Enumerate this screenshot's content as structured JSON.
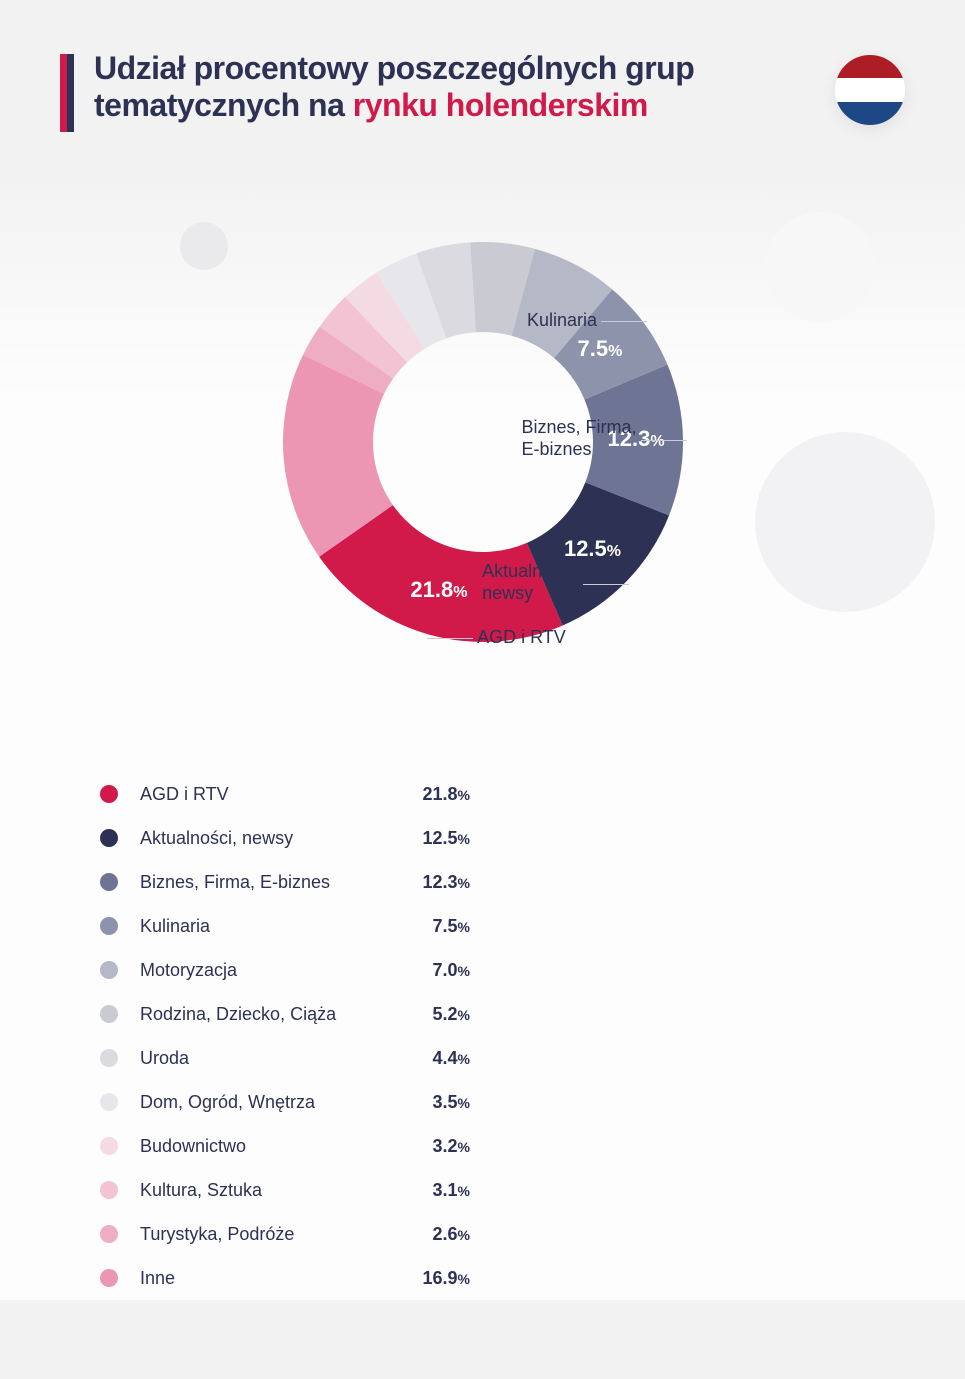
{
  "header": {
    "title_prefix": "Udział procentowy poszczególnych grup tematycznych na ",
    "title_highlight": "rynku holenderskim",
    "flag_colors": [
      "#ad1d25",
      "#ffffff",
      "#1e4785"
    ]
  },
  "chart": {
    "type": "donut",
    "inner_radius_ratio": 0.55,
    "background_color": "#fdfdfd",
    "start_angle_deg": 145,
    "direction": "counterclockwise",
    "slices": [
      {
        "label": "AGD i RTV",
        "value": 21.8,
        "color": "#d11a4a",
        "show_value_on_slice": true,
        "callout": {
          "side": "right",
          "text": "AGD i RTV"
        }
      },
      {
        "label": "Aktualności, newsy",
        "value": 12.5,
        "color": "#2d3254",
        "show_value_on_slice": true,
        "callout": {
          "side": "left",
          "text": "Aktualności,\nnewsy"
        }
      },
      {
        "label": "Biznes, Firma, E-biznes",
        "value": 12.3,
        "color": "#6e7493",
        "show_value_on_slice": true,
        "callout": {
          "side": "left",
          "text": "Biznes, Firma,\nE-biznes"
        }
      },
      {
        "label": "Kulinaria",
        "value": 7.5,
        "color": "#8e93ac",
        "show_value_on_slice": true,
        "callout": {
          "side": "left",
          "text": "Kulinaria"
        }
      },
      {
        "label": "Motoryzacja",
        "value": 7.0,
        "color": "#b5b8c6",
        "show_value_on_slice": false
      },
      {
        "label": "Rodzina, Dziecko, Ciąża",
        "value": 5.2,
        "color": "#c9cad2",
        "show_value_on_slice": false
      },
      {
        "label": "Uroda",
        "value": 4.4,
        "color": "#dadae0",
        "show_value_on_slice": false
      },
      {
        "label": "Dom, Ogród, Wnętrza",
        "value": 3.5,
        "color": "#e7e7eb",
        "show_value_on_slice": false
      },
      {
        "label": "Budownictwo",
        "value": 3.2,
        "color": "#f4dbe3",
        "show_value_on_slice": false
      },
      {
        "label": "Kultura, Sztuka",
        "value": 3.1,
        "color": "#f2c3d2",
        "show_value_on_slice": false
      },
      {
        "label": "Turystyka, Podróże",
        "value": 2.6,
        "color": "#efadc3",
        "show_value_on_slice": false
      },
      {
        "label": "Inne",
        "value": 16.9,
        "color": "#ec96b4",
        "show_value_on_slice": false
      }
    ]
  },
  "typography": {
    "title_fontsize": 32,
    "title_weight": 800,
    "callout_fontsize": 18,
    "slice_value_fontsize": 22,
    "legend_fontsize": 18
  }
}
